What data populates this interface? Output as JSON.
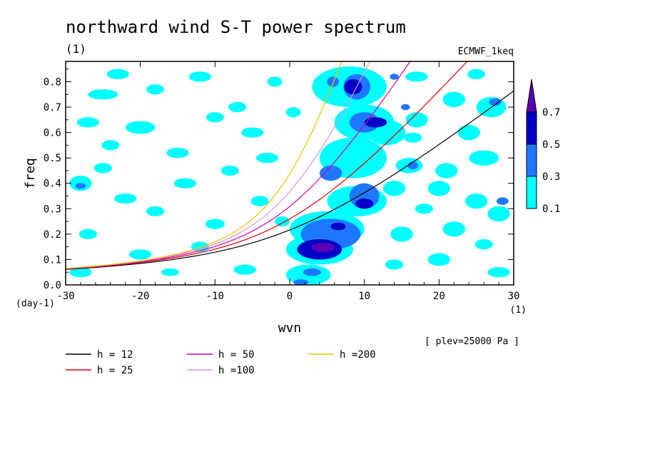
{
  "chart_data": {
    "type": "heatmap",
    "title": "northward wind S-T power spectrum",
    "subtitle": "(1)",
    "source_label": "ECMWF_1keq",
    "xlabel": "wvn",
    "ylabel": "freq",
    "x_unit": "(1)",
    "y_unit": "(day-1)",
    "annotation": "[ plev=25000 Pa ]",
    "xlim": [
      -30,
      30
    ],
    "ylim": [
      0,
      0.88
    ],
    "x_ticks": [
      -30,
      -20,
      -10,
      0,
      10,
      20,
      30
    ],
    "y_ticks": [
      0.0,
      0.1,
      0.2,
      0.3,
      0.4,
      0.5,
      0.6,
      0.7,
      0.8
    ],
    "x_tick_labels": [
      "-30",
      "-20",
      "-10",
      "0",
      "10",
      "20",
      "30"
    ],
    "y_tick_labels": [
      "0.0",
      "0.1",
      "0.2",
      "0.3",
      "0.4",
      "0.5",
      "0.6",
      "0.7",
      "0.8"
    ],
    "colorbar": {
      "levels": [
        "0.1",
        "0.3",
        "0.5",
        "0.7"
      ],
      "colors": [
        "#00ffff",
        "#1e78ff",
        "#0000c8",
        "#5a00b4"
      ]
    },
    "dispersion_curves": [
      {
        "name": "h = 12",
        "h": 12,
        "color": "#000000"
      },
      {
        "name": "h = 25",
        "h": 25,
        "color": "#e00000"
      },
      {
        "name": "h = 50",
        "h": 50,
        "color": "#d000b0"
      },
      {
        "name": "h =100",
        "h": 100,
        "color": "#e090e0"
      },
      {
        "name": "h =200",
        "h": 200,
        "color": "#f0c000"
      }
    ],
    "power_regions": [
      {
        "x": 4.5,
        "y": 0.148,
        "rx": 1.6,
        "ry": 0.018,
        "level": 3
      },
      {
        "x": 4.0,
        "y": 0.14,
        "rx": 3.0,
        "ry": 0.04,
        "level": 2
      },
      {
        "x": 6.5,
        "y": 0.23,
        "rx": 1.0,
        "ry": 0.015,
        "level": 2
      },
      {
        "x": 10.0,
        "y": 0.32,
        "rx": 1.2,
        "ry": 0.02,
        "level": 2
      },
      {
        "x": 11.5,
        "y": 0.64,
        "rx": 1.5,
        "ry": 0.02,
        "level": 2
      },
      {
        "x": 8.5,
        "y": 0.78,
        "rx": 1.2,
        "ry": 0.03,
        "level": 2
      },
      {
        "x": 5.5,
        "y": 0.2,
        "rx": 4.0,
        "ry": 0.06,
        "level": 1
      },
      {
        "x": 10.0,
        "y": 0.35,
        "rx": 2.0,
        "ry": 0.05,
        "level": 1
      },
      {
        "x": 5.5,
        "y": 0.44,
        "rx": 1.5,
        "ry": 0.03,
        "level": 1
      },
      {
        "x": 10.0,
        "y": 0.64,
        "rx": 2.0,
        "ry": 0.04,
        "level": 1
      },
      {
        "x": 9.0,
        "y": 0.78,
        "rx": 1.8,
        "ry": 0.05,
        "level": 1
      },
      {
        "x": 5.8,
        "y": 0.8,
        "rx": 0.8,
        "ry": 0.02,
        "level": 1
      },
      {
        "x": 3.0,
        "y": 0.05,
        "rx": 1.2,
        "ry": 0.015,
        "level": 1
      },
      {
        "x": 1.5,
        "y": 0.01,
        "rx": 1.0,
        "ry": 0.012,
        "level": 1
      },
      {
        "x": 27.5,
        "y": 0.72,
        "rx": 0.8,
        "ry": 0.015,
        "level": 1
      },
      {
        "x": 28.5,
        "y": 0.33,
        "rx": 0.8,
        "ry": 0.015,
        "level": 1
      },
      {
        "x": 16.5,
        "y": 0.47,
        "rx": 0.7,
        "ry": 0.015,
        "level": 1
      },
      {
        "x": -28.0,
        "y": 0.39,
        "rx": 0.7,
        "ry": 0.012,
        "level": 1
      },
      {
        "x": 15.5,
        "y": 0.7,
        "rx": 0.6,
        "ry": 0.012,
        "level": 1
      },
      {
        "x": 14.0,
        "y": 0.82,
        "rx": 0.6,
        "ry": 0.012,
        "level": 1
      },
      {
        "x": 4.0,
        "y": 0.14,
        "rx": 4.5,
        "ry": 0.06,
        "level": 0
      },
      {
        "x": 5.0,
        "y": 0.22,
        "rx": 5.0,
        "ry": 0.07,
        "level": 0
      },
      {
        "x": 9.0,
        "y": 0.33,
        "rx": 4.0,
        "ry": 0.06,
        "level": 0
      },
      {
        "x": 8.5,
        "y": 0.5,
        "rx": 4.5,
        "ry": 0.08,
        "level": 0
      },
      {
        "x": 10.0,
        "y": 0.64,
        "rx": 4.0,
        "ry": 0.07,
        "level": 0
      },
      {
        "x": 8.0,
        "y": 0.78,
        "rx": 5.0,
        "ry": 0.08,
        "level": 0
      },
      {
        "x": 2.5,
        "y": 0.04,
        "rx": 3.0,
        "ry": 0.04,
        "level": 0
      },
      {
        "x": 13.0,
        "y": 0.6,
        "rx": 2.5,
        "ry": 0.05,
        "level": 0
      },
      {
        "x": -25.0,
        "y": 0.75,
        "rx": 2.0,
        "ry": 0.02,
        "level": 0
      },
      {
        "x": -23.0,
        "y": 0.83,
        "rx": 1.5,
        "ry": 0.02,
        "level": 0
      },
      {
        "x": -27.0,
        "y": 0.64,
        "rx": 1.5,
        "ry": 0.02,
        "level": 0
      },
      {
        "x": -20.0,
        "y": 0.62,
        "rx": 2.0,
        "ry": 0.025,
        "level": 0
      },
      {
        "x": -15.0,
        "y": 0.52,
        "rx": 1.5,
        "ry": 0.02,
        "level": 0
      },
      {
        "x": -18.0,
        "y": 0.77,
        "rx": 1.2,
        "ry": 0.02,
        "level": 0
      },
      {
        "x": -12.0,
        "y": 0.82,
        "rx": 1.5,
        "ry": 0.02,
        "level": 0
      },
      {
        "x": -5.0,
        "y": 0.6,
        "rx": 1.5,
        "ry": 0.02,
        "level": 0
      },
      {
        "x": -7.0,
        "y": 0.7,
        "rx": 1.2,
        "ry": 0.02,
        "level": 0
      },
      {
        "x": -3.0,
        "y": 0.5,
        "rx": 1.5,
        "ry": 0.02,
        "level": 0
      },
      {
        "x": -8.0,
        "y": 0.45,
        "rx": 1.2,
        "ry": 0.02,
        "level": 0
      },
      {
        "x": -14.0,
        "y": 0.4,
        "rx": 1.5,
        "ry": 0.02,
        "level": 0
      },
      {
        "x": -22.0,
        "y": 0.34,
        "rx": 1.5,
        "ry": 0.02,
        "level": 0
      },
      {
        "x": -28.0,
        "y": 0.4,
        "rx": 1.5,
        "ry": 0.03,
        "level": 0
      },
      {
        "x": -25.0,
        "y": 0.46,
        "rx": 1.2,
        "ry": 0.02,
        "level": 0
      },
      {
        "x": -18.0,
        "y": 0.29,
        "rx": 1.2,
        "ry": 0.02,
        "level": 0
      },
      {
        "x": -10.0,
        "y": 0.24,
        "rx": 1.3,
        "ry": 0.02,
        "level": 0
      },
      {
        "x": -4.0,
        "y": 0.33,
        "rx": 1.2,
        "ry": 0.02,
        "level": 0
      },
      {
        "x": -6.0,
        "y": 0.06,
        "rx": 1.5,
        "ry": 0.02,
        "level": 0
      },
      {
        "x": -20.0,
        "y": 0.12,
        "rx": 1.5,
        "ry": 0.02,
        "level": 0
      },
      {
        "x": -12.0,
        "y": 0.15,
        "rx": 1.2,
        "ry": 0.02,
        "level": 0
      },
      {
        "x": -28.0,
        "y": 0.05,
        "rx": 1.5,
        "ry": 0.02,
        "level": 0
      },
      {
        "x": -27.0,
        "y": 0.2,
        "rx": 1.2,
        "ry": 0.02,
        "level": 0
      },
      {
        "x": -24.0,
        "y": 0.55,
        "rx": 1.2,
        "ry": 0.02,
        "level": 0
      },
      {
        "x": -10.0,
        "y": 0.66,
        "rx": 1.2,
        "ry": 0.02,
        "level": 0
      },
      {
        "x": -2.0,
        "y": 0.8,
        "rx": 1.0,
        "ry": 0.02,
        "level": 0
      },
      {
        "x": 0.5,
        "y": 0.68,
        "rx": 1.0,
        "ry": 0.02,
        "level": 0
      },
      {
        "x": -1.0,
        "y": 0.25,
        "rx": 1.0,
        "ry": 0.02,
        "level": 0
      },
      {
        "x": -16.0,
        "y": 0.05,
        "rx": 1.2,
        "ry": 0.015,
        "level": 0
      },
      {
        "x": 17.0,
        "y": 0.65,
        "rx": 1.5,
        "ry": 0.03,
        "level": 0
      },
      {
        "x": 22.0,
        "y": 0.73,
        "rx": 1.5,
        "ry": 0.03,
        "level": 0
      },
      {
        "x": 27.0,
        "y": 0.7,
        "rx": 2.0,
        "ry": 0.04,
        "level": 0
      },
      {
        "x": 24.0,
        "y": 0.6,
        "rx": 1.5,
        "ry": 0.03,
        "level": 0
      },
      {
        "x": 26.0,
        "y": 0.5,
        "rx": 2.0,
        "ry": 0.03,
        "level": 0
      },
      {
        "x": 21.0,
        "y": 0.45,
        "rx": 1.5,
        "ry": 0.03,
        "level": 0
      },
      {
        "x": 16.0,
        "y": 0.47,
        "rx": 1.8,
        "ry": 0.03,
        "level": 0
      },
      {
        "x": 14.0,
        "y": 0.38,
        "rx": 1.5,
        "ry": 0.03,
        "level": 0
      },
      {
        "x": 20.0,
        "y": 0.38,
        "rx": 1.5,
        "ry": 0.03,
        "level": 0
      },
      {
        "x": 25.0,
        "y": 0.33,
        "rx": 1.5,
        "ry": 0.03,
        "level": 0
      },
      {
        "x": 28.0,
        "y": 0.28,
        "rx": 1.5,
        "ry": 0.03,
        "level": 0
      },
      {
        "x": 18.0,
        "y": 0.3,
        "rx": 1.2,
        "ry": 0.02,
        "level": 0
      },
      {
        "x": 22.0,
        "y": 0.22,
        "rx": 1.5,
        "ry": 0.03,
        "level": 0
      },
      {
        "x": 15.0,
        "y": 0.2,
        "rx": 1.5,
        "ry": 0.03,
        "level": 0
      },
      {
        "x": 26.0,
        "y": 0.16,
        "rx": 1.2,
        "ry": 0.02,
        "level": 0
      },
      {
        "x": 20.0,
        "y": 0.1,
        "rx": 1.5,
        "ry": 0.025,
        "level": 0
      },
      {
        "x": 28.0,
        "y": 0.05,
        "rx": 1.5,
        "ry": 0.02,
        "level": 0
      },
      {
        "x": 14.0,
        "y": 0.08,
        "rx": 1.2,
        "ry": 0.02,
        "level": 0
      },
      {
        "x": 17.0,
        "y": 0.82,
        "rx": 1.5,
        "ry": 0.02,
        "level": 0
      },
      {
        "x": 25.0,
        "y": 0.83,
        "rx": 1.2,
        "ry": 0.02,
        "level": 0
      },
      {
        "x": 16.5,
        "y": 0.58,
        "rx": 1.2,
        "ry": 0.02,
        "level": 0
      }
    ]
  }
}
